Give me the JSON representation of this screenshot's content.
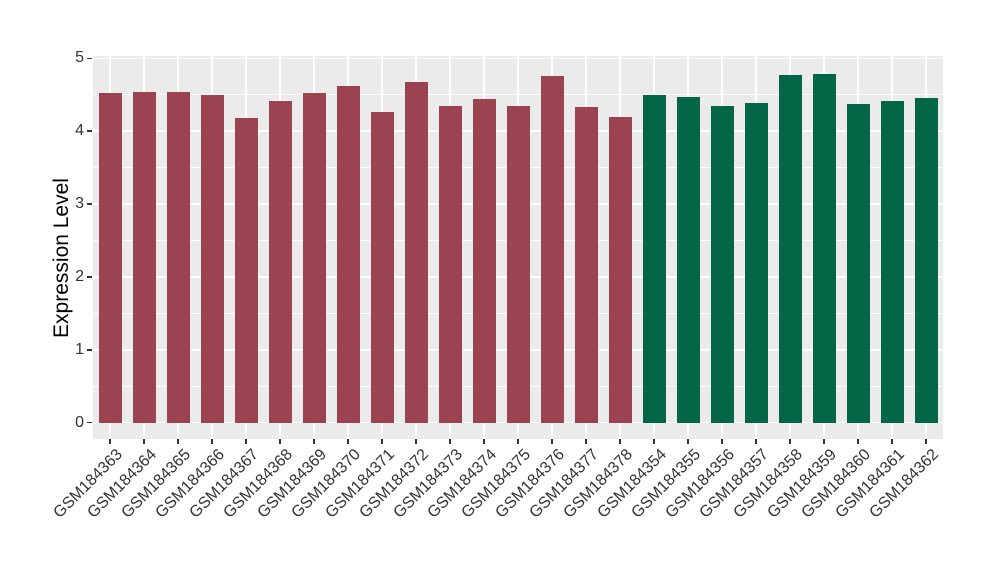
{
  "chart_data": {
    "type": "bar",
    "title": "",
    "xlabel": "",
    "ylabel": "Expression Level",
    "ylim": [
      0,
      5
    ],
    "yticks": [
      0,
      1,
      2,
      3,
      4,
      5
    ],
    "grid": "on",
    "legend": "none",
    "panel_bg": "#EBEBEB",
    "grid_color": "#FFFFFF",
    "axis_text_color": "#333333",
    "axis_title_color": "#000000",
    "tick_mark_color": "#333333",
    "group_colors": {
      "group1": "#9B4350",
      "group2": "#026647"
    },
    "categories": [
      "GSM184363",
      "GSM184364",
      "GSM184365",
      "GSM184366",
      "GSM184367",
      "GSM184368",
      "GSM184369",
      "GSM184370",
      "GSM184371",
      "GSM184372",
      "GSM184373",
      "GSM184374",
      "GSM184375",
      "GSM184376",
      "GSM184377",
      "GSM184378",
      "GSM184354",
      "GSM184355",
      "GSM184356",
      "GSM184357",
      "GSM184358",
      "GSM184359",
      "GSM184360",
      "GSM184361",
      "GSM184362"
    ],
    "values": [
      4.53,
      4.54,
      4.54,
      4.49,
      4.18,
      4.41,
      4.53,
      4.62,
      4.26,
      4.67,
      4.34,
      4.44,
      4.35,
      4.76,
      4.33,
      4.2,
      4.5,
      4.47,
      4.35,
      4.38,
      4.77,
      4.78,
      4.37,
      4.41,
      4.46
    ],
    "bar_group": [
      "group1",
      "group1",
      "group1",
      "group1",
      "group1",
      "group1",
      "group1",
      "group1",
      "group1",
      "group1",
      "group1",
      "group1",
      "group1",
      "group1",
      "group1",
      "group1",
      "group2",
      "group2",
      "group2",
      "group2",
      "group2",
      "group2",
      "group2",
      "group2",
      "group2"
    ]
  }
}
